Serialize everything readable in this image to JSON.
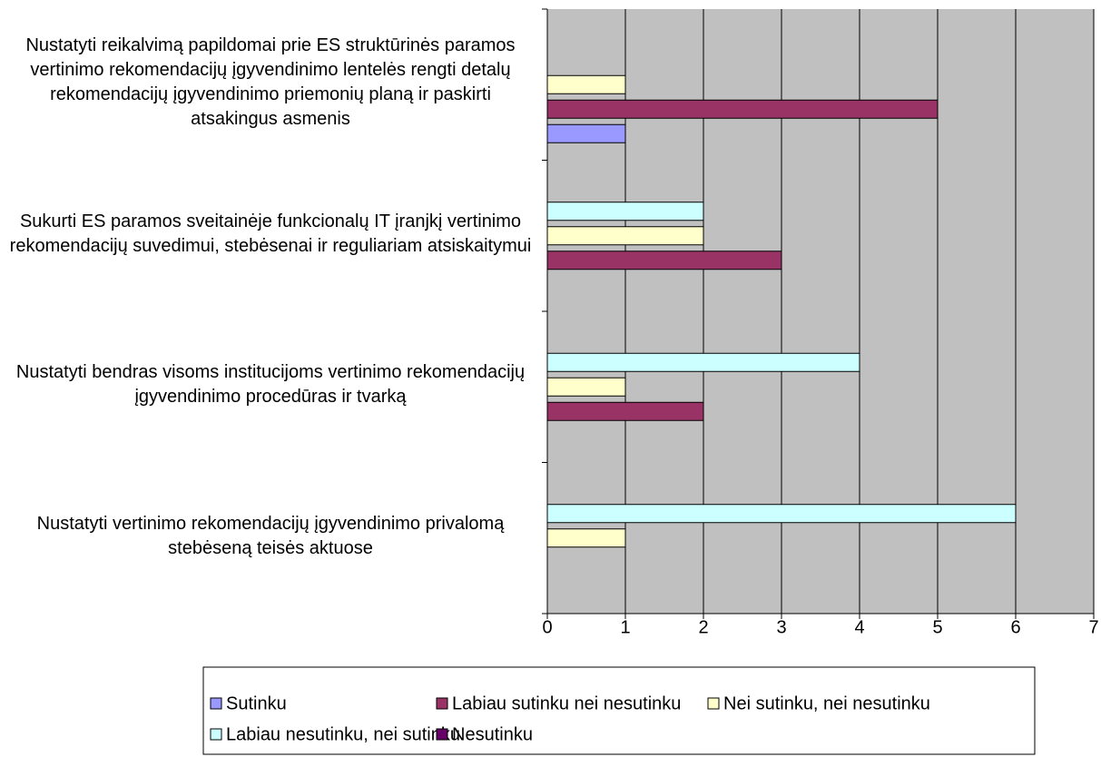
{
  "chart_data": {
    "type": "hbar",
    "categories": [
      "Nustatyti reikalvimą papildomai prie ES struktūrinės paramos vertinimo rekomendacijų įgyvendinimo lentelės rengti detalų rekomendacijų įgyvendinimo priemonių planą ir paskirti atsakingus asmenis",
      "Sukurti ES paramos sveitainėje funkcionalų IT įranjkį vertinimo rekomendacijų suvedimui, stebėsenai ir reguliariam atsiskaitymui",
      "Nustatyti bendras visoms institucijoms vertinimo rekomendacijų įgyvendinimo procedūras ir tvarką",
      "Nustatyti vertinimo rekomendacijų įgyvendinimo privalomą stebėseną teisės aktuose"
    ],
    "series": [
      {
        "name": "Sutinku",
        "color": "#9999ff",
        "values": [
          1,
          0,
          0,
          0
        ]
      },
      {
        "name": "Labiau sutinku nei nesutinku",
        "color": "#993366",
        "values": [
          5,
          3,
          2,
          0
        ]
      },
      {
        "name": "Nei sutinku, nei nesutinku",
        "color": "#ffffcc",
        "values": [
          1,
          2,
          1,
          1
        ]
      },
      {
        "name": "Labiau nesutinku, nei sutinku",
        "color": "#ccffff",
        "values": [
          0,
          2,
          4,
          6
        ]
      },
      {
        "name": "Nesutinku",
        "color": "#660066",
        "values": [
          0,
          0,
          0,
          0
        ]
      }
    ],
    "xlim": [
      0,
      7
    ],
    "xticks": [
      0,
      1,
      2,
      3,
      4,
      5,
      6,
      7
    ],
    "grid": true
  }
}
